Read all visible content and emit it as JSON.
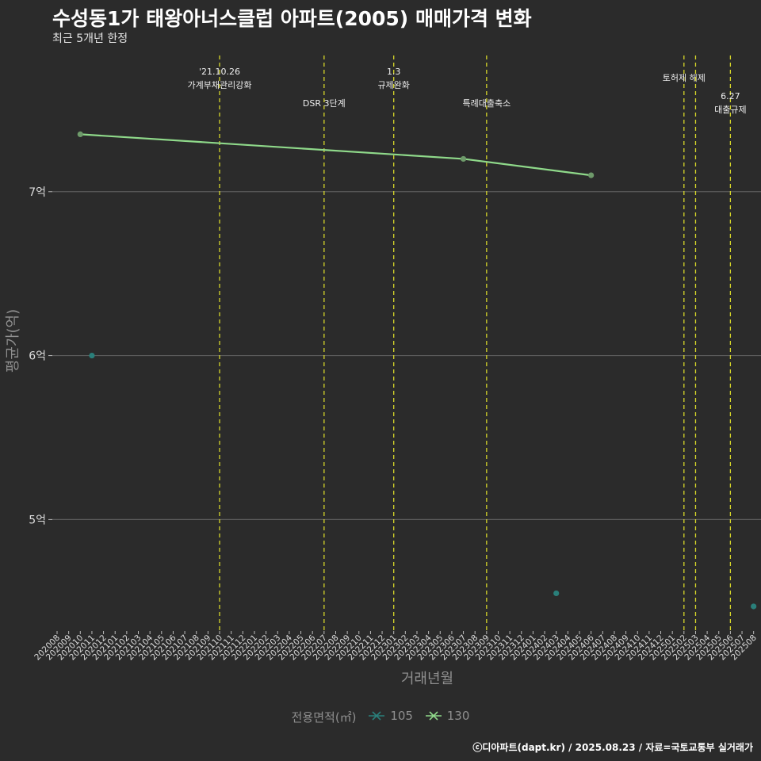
{
  "header": {
    "title": "수성동1가 태왕아너스클럽 아파트(2005) 매매가격 변화",
    "subtitle": "최근 5개년 한정"
  },
  "legend": {
    "title": "전용면적(㎡)",
    "items": [
      {
        "label": "105",
        "color": "#2a7f7a"
      },
      {
        "label": "130",
        "color": "#8fd98a"
      }
    ]
  },
  "caption": "ⓒ디아파트(dapt.kr) / 2025.08.23 / 자료=국토교통부 실거래가",
  "chart_data": {
    "type": "line",
    "title": "수성동1가 태왕아너스클럽 아파트(2005) 매매가격 변화",
    "subtitle": "최근 5개년 한정",
    "xlabel": "거래년월",
    "ylabel": "평균가(억)",
    "categories": [
      "202008",
      "202009",
      "202010",
      "202011",
      "202012",
      "202101",
      "202102",
      "202103",
      "202104",
      "202105",
      "202106",
      "202107",
      "202108",
      "202109",
      "202110",
      "202111",
      "202112",
      "202201",
      "202202",
      "202203",
      "202204",
      "202205",
      "202206",
      "202207",
      "202208",
      "202209",
      "202210",
      "202211",
      "202212",
      "202301",
      "202302",
      "202303",
      "202304",
      "202305",
      "202306",
      "202307",
      "202308",
      "202309",
      "202310",
      "202311",
      "202312",
      "202401",
      "202402",
      "202403",
      "202404",
      "202405",
      "202406",
      "202407",
      "202408",
      "202409",
      "202410",
      "202411",
      "202412",
      "202501",
      "202502",
      "202503",
      "202504",
      "202505",
      "202506",
      "202507",
      "202508"
    ],
    "y_ticks": [
      5,
      6,
      7
    ],
    "y_tick_labels": [
      "5억",
      "6억",
      "7억"
    ],
    "ylim": [
      4.32,
      7.85
    ],
    "series": [
      {
        "name": "105",
        "color": "#2a7f7a",
        "line": false,
        "points": [
          {
            "x": "202011",
            "y": 6.0
          },
          {
            "x": "202403",
            "y": 4.55
          },
          {
            "x": "202508",
            "y": 4.47
          }
        ]
      },
      {
        "name": "130",
        "color": "#8fd98a",
        "line": true,
        "points": [
          {
            "x": "202010",
            "y": 7.35
          },
          {
            "x": "202307",
            "y": 7.2
          },
          {
            "x": "202406",
            "y": 7.1
          }
        ]
      }
    ],
    "events": [
      {
        "x": "202110",
        "offset": 0,
        "label": [
          "'21.10.26",
          "가계부채관리강화"
        ],
        "row": "top"
      },
      {
        "x": "202207",
        "offset": 0,
        "label": [
          "DSR 3단계"
        ],
        "row": "mid"
      },
      {
        "x": "202301",
        "offset": 0,
        "label": [
          "1.3",
          "규제완화"
        ],
        "row": "top"
      },
      {
        "x": "202309",
        "offset": 0,
        "label": [
          "특례대출축소"
        ],
        "row": "mid"
      },
      {
        "x": "202502",
        "offset": 0,
        "label": [
          "토허제 해제"
        ],
        "row": "top"
      },
      {
        "x": "202503",
        "offset": 0,
        "label": [],
        "row": "top"
      },
      {
        "x": "202506",
        "offset": 0,
        "label": [
          "6.27",
          "대출규제"
        ],
        "row": "low"
      }
    ]
  }
}
